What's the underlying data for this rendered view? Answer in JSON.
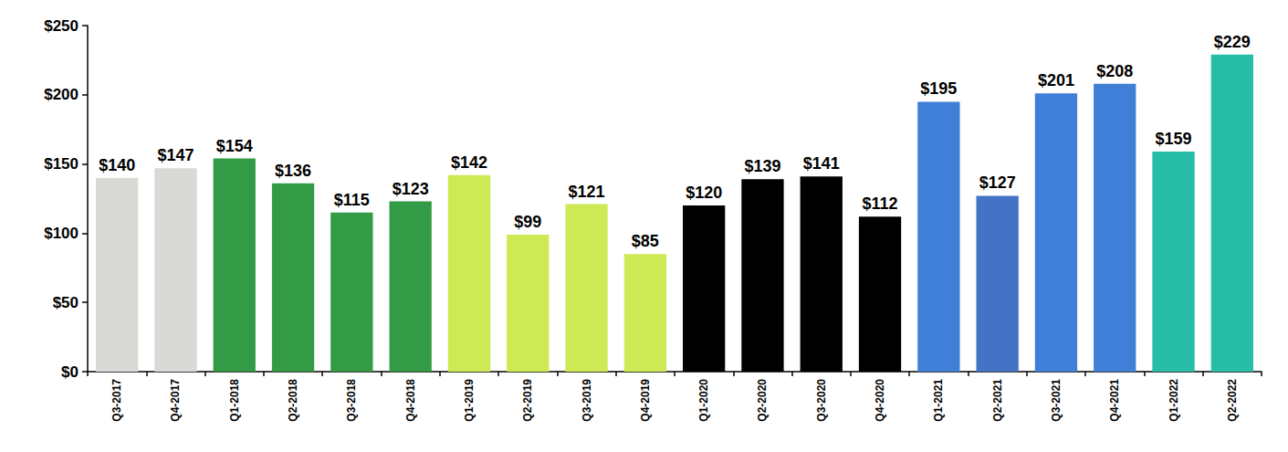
{
  "chart_data": {
    "type": "bar",
    "categories": [
      "Q3-2017",
      "Q4-2017",
      "Q1-2018",
      "Q2-2018",
      "Q3-2018",
      "Q4-2018",
      "Q1-2019",
      "Q2-2019",
      "Q3-2019",
      "Q4-2019",
      "Q1-2020",
      "Q2-2020",
      "Q3-2020",
      "Q4-2020",
      "Q1-2021",
      "Q2-2021",
      "Q3-2021",
      "Q4-2021",
      "Q1-2022",
      "Q2-2022"
    ],
    "values": [
      140,
      147,
      154,
      136,
      115,
      123,
      142,
      99,
      121,
      85,
      120,
      139,
      141,
      112,
      195,
      127,
      201,
      208,
      159,
      229
    ],
    "value_labels": [
      "$140",
      "$147",
      "$154",
      "$136",
      "$115",
      "$123",
      "$142",
      "$99",
      "$121",
      "$85",
      "$120",
      "$139",
      "$141",
      "$112",
      "$195",
      "$127",
      "$201",
      "$208",
      "$159",
      "$229"
    ],
    "colors": [
      "#d9d9d6",
      "#d9d9d6",
      "#339a45",
      "#339a45",
      "#339a45",
      "#339a45",
      "#cdea55",
      "#cdea55",
      "#cdea55",
      "#cdea55",
      "#000000",
      "#000000",
      "#000000",
      "#000000",
      "#3f7fd8",
      "#4472c4",
      "#3f7fd8",
      "#3f7fd8",
      "#27bda7",
      "#27bda7"
    ],
    "ylim": [
      0,
      250
    ],
    "yticks": [
      {
        "value": 0,
        "label": "$0"
      },
      {
        "value": 50,
        "label": "$50"
      },
      {
        "value": 100,
        "label": "$100"
      },
      {
        "value": 150,
        "label": "$150"
      },
      {
        "value": 200,
        "label": "$200"
      },
      {
        "value": 250,
        "label": "$250"
      }
    ],
    "grid": false,
    "data_labels": true
  }
}
